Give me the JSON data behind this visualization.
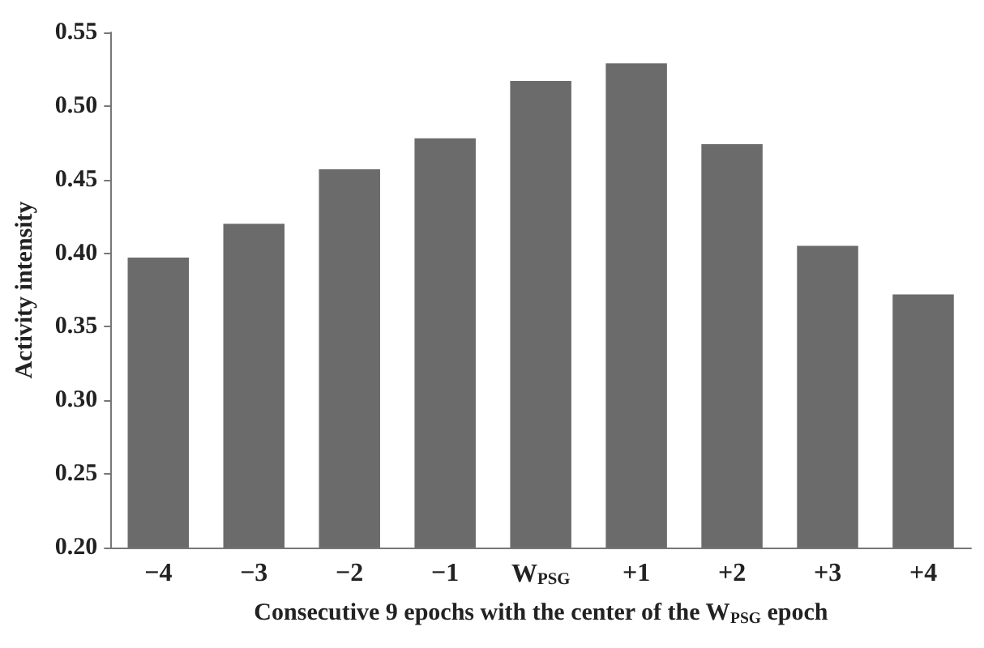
{
  "chart_data": {
    "type": "bar",
    "xlabel": "Consecutive 9 epochs with the center of the W$_{PSG}$ epoch",
    "ylabel": "Activity intensity",
    "categories": [
      "−4",
      "−3",
      "−2",
      "−1",
      "W$_{PSG}$",
      "+1",
      "+2",
      "+3",
      "+4"
    ],
    "values": [
      0.397,
      0.42,
      0.457,
      0.478,
      0.517,
      0.529,
      0.474,
      0.405,
      0.372
    ],
    "color": "#6b6b6b",
    "ylim": [
      0.2,
      0.55
    ],
    "yticks": [
      {
        "value": 0.2,
        "label": "0.20"
      },
      0.25,
      {
        "value": 0.3,
        "label": "0.30"
      },
      0.35,
      {
        "value": 0.4,
        "label": "0.40"
      },
      0.45,
      {
        "value": 0.5,
        "label": "0.50"
      },
      0.55
    ],
    "grid": false
  }
}
